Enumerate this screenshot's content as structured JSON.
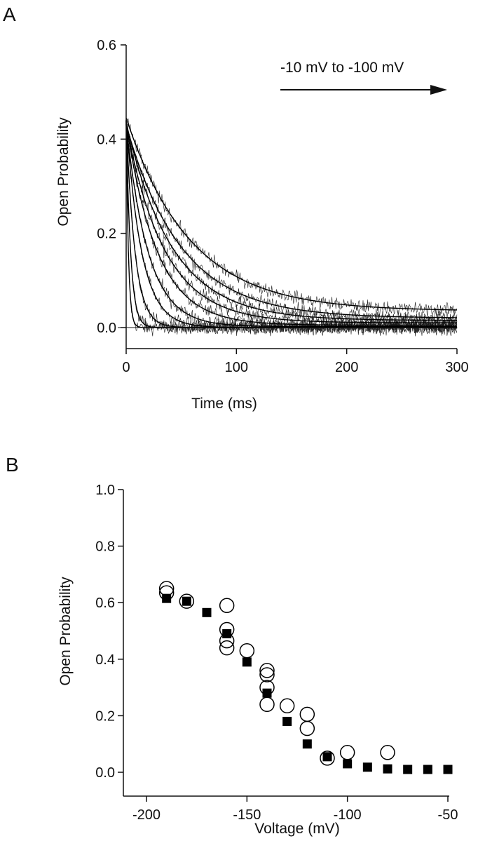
{
  "chart_data": [
    {
      "panel_label": "A",
      "type": "line",
      "xlabel": "Time (ms)",
      "ylabel": "Open Probability",
      "xlim": [
        0,
        300
      ],
      "ylim": [
        -0.04,
        0.6
      ],
      "xticks": [
        "0",
        "100",
        "200",
        "300"
      ],
      "yticks": [
        "0.0",
        "0.2",
        "0.4",
        "0.6"
      ],
      "annotation": "-10 mV to -100 mV",
      "grid": false,
      "series_description": "exponential fits with noisy traces",
      "series": [
        {
          "amplitude": 0.44,
          "tau_ms": 2,
          "offset": 0.0
        },
        {
          "amplitude": 0.44,
          "tau_ms": 4,
          "offset": 0.0
        },
        {
          "amplitude": 0.44,
          "tau_ms": 8,
          "offset": 0.0
        },
        {
          "amplitude": 0.44,
          "tau_ms": 14,
          "offset": 0.0
        },
        {
          "amplitude": 0.43,
          "tau_ms": 20,
          "offset": 0.002
        },
        {
          "amplitude": 0.43,
          "tau_ms": 28,
          "offset": 0.005
        },
        {
          "amplitude": 0.42,
          "tau_ms": 35,
          "offset": 0.01
        },
        {
          "amplitude": 0.42,
          "tau_ms": 42,
          "offset": 0.015
        },
        {
          "amplitude": 0.41,
          "tau_ms": 50,
          "offset": 0.02
        },
        {
          "amplitude": 0.41,
          "tau_ms": 58,
          "offset": 0.035
        }
      ]
    },
    {
      "panel_label": "B",
      "type": "scatter",
      "xlabel": "Voltage (mV)",
      "ylabel": "Open Probability",
      "xlim": [
        -200,
        -50
      ],
      "ylim": [
        0,
        1.0
      ],
      "xticks": [
        "-200",
        "-150",
        "-100",
        "-50"
      ],
      "yticks": [
        "0.0",
        "0.2",
        "0.4",
        "0.6",
        "0.8",
        "1.0"
      ],
      "grid": false,
      "series": [
        {
          "marker": "filled-square",
          "x": [
            -190,
            -180,
            -170,
            -160,
            -150,
            -140,
            -130,
            -120,
            -110,
            -100,
            -90,
            -80,
            -70,
            -60,
            -50
          ],
          "y": [
            0.615,
            0.605,
            0.565,
            0.49,
            0.39,
            0.28,
            0.18,
            0.1,
            0.055,
            0.03,
            0.018,
            0.012,
            0.01,
            0.01,
            0.01
          ]
        },
        {
          "marker": "open-circle",
          "x": [
            -190,
            -190,
            -180,
            -160,
            -160,
            -160,
            -160,
            -150,
            -140,
            -140,
            -140,
            -140,
            -130,
            -120,
            -120,
            -110,
            -100,
            -80
          ],
          "y": [
            0.65,
            0.635,
            0.605,
            0.59,
            0.505,
            0.465,
            0.44,
            0.43,
            0.36,
            0.345,
            0.3,
            0.24,
            0.235,
            0.205,
            0.155,
            0.05,
            0.07,
            0.07
          ]
        }
      ]
    }
  ]
}
